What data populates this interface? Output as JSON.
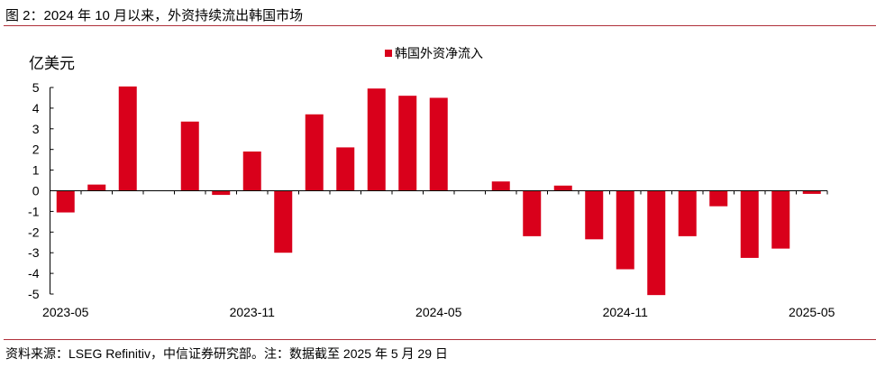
{
  "title": "图 2：2024 年 10 月以来，外资持续流出韩国市场",
  "source": "资料来源：LSEG Refinitiv，中信证券研究部。注：数据截至 2025 年 5 月 29 日",
  "chart_data": {
    "type": "bar",
    "title": "",
    "ylabel": "亿美元",
    "xlabel": "",
    "ylim": [
      -5,
      5
    ],
    "yticks": [
      5,
      4,
      3,
      2,
      1,
      0,
      -1,
      -2,
      -3,
      -4,
      -5
    ],
    "grid": false,
    "legend_position": "top-right",
    "bar_color": "#d9001b",
    "categories": [
      "2023-05",
      "2023-06",
      "2023-07",
      "2023-08",
      "2023-09",
      "2023-10",
      "2023-11",
      "2023-12",
      "2024-01",
      "2024-02",
      "2024-03",
      "2024-04",
      "2024-05",
      "2024-06",
      "2024-07",
      "2024-08",
      "2024-09",
      "2024-10",
      "2024-11",
      "2024-12",
      "2025-01",
      "2025-02",
      "2025-03",
      "2025-04",
      "2025-05"
    ],
    "xtick_labels": [
      "2023-05",
      "2023-11",
      "2024-05",
      "2024-11",
      "2025-05"
    ],
    "series": [
      {
        "name": "韩国外资净流入",
        "values": [
          -1.05,
          0.3,
          5.05,
          -0.02,
          3.35,
          -0.2,
          1.9,
          -3.0,
          3.7,
          2.1,
          4.95,
          4.6,
          4.5,
          0.0,
          0.45,
          -2.2,
          0.25,
          -2.35,
          -3.8,
          -5.05,
          -2.2,
          -0.75,
          -3.25,
          -2.8,
          -0.15
        ]
      }
    ]
  }
}
